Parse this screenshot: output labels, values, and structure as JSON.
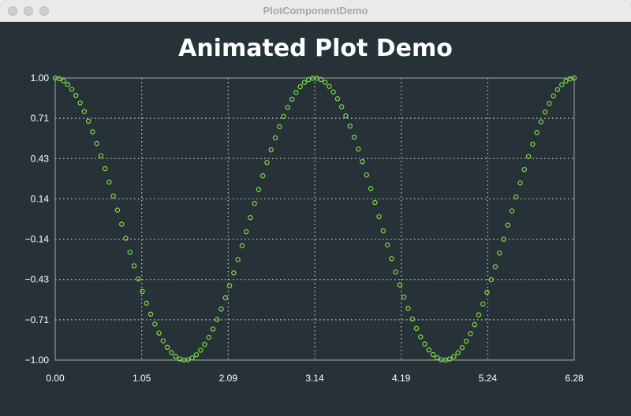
{
  "window": {
    "title": "PlotComponentDemo"
  },
  "chart_data": {
    "type": "scatter",
    "title": "Animated Plot Demo",
    "xlabel": "",
    "ylabel": "",
    "xlim": [
      0,
      6.28
    ],
    "ylim": [
      -1,
      1
    ],
    "x_ticks": [
      "0.00",
      "1.05",
      "2.09",
      "3.14",
      "4.19",
      "5.24",
      "6.28"
    ],
    "y_ticks": [
      "1.00",
      "0.71",
      "0.43",
      "0.14",
      "−0.14",
      "−0.43",
      "−0.71",
      "−1.00"
    ],
    "grid": true,
    "function": "cos(2x)",
    "point_count": 126,
    "colors": {
      "background": "#263238",
      "points": "#7fe040",
      "grid": "#c8c8c8",
      "frame": "#a0a8a0"
    }
  }
}
